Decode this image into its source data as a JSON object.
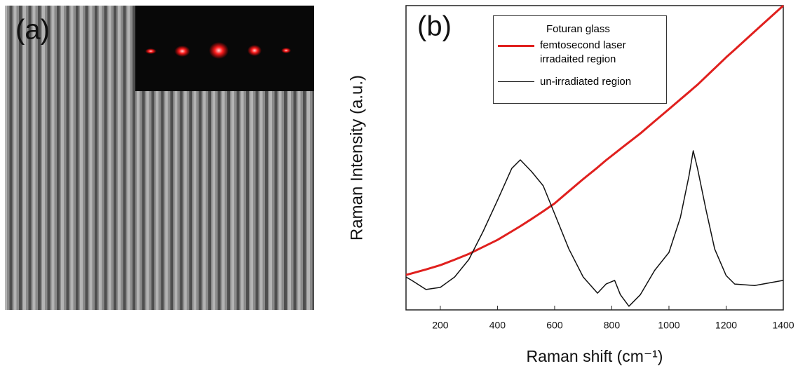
{
  "panel_a": {
    "label": "(a)"
  },
  "chart_data": {
    "type": "line",
    "panel_label": "(b)",
    "x_label": "Raman shift (cm⁻¹)",
    "y_label": "Raman Intensity (a.u.)",
    "legend_title": "Foturan glass",
    "x": [
      80,
      100,
      150,
      200,
      250,
      300,
      350,
      400,
      450,
      480,
      520,
      560,
      600,
      650,
      700,
      750,
      780,
      810,
      830,
      860,
      900,
      950,
      1000,
      1040,
      1070,
      1085,
      1100,
      1130,
      1160,
      1200,
      1230,
      1300,
      1400
    ],
    "series": [
      {
        "name": "femtosecond laser irradaited region",
        "color": "#e0201e",
        "width": 3,
        "values": [
          11.5,
          12,
          13.3,
          14.7,
          16.5,
          18.4,
          20.7,
          23,
          25.8,
          27.5,
          29.9,
          32.4,
          35,
          39,
          43,
          46.8,
          49.2,
          51.4,
          52.9,
          55.1,
          58,
          62,
          66,
          69.2,
          71.6,
          72.8,
          74,
          76.7,
          79.4,
          83,
          85.5,
          91.5,
          100
        ]
      },
      {
        "name": "un-irradiated region",
        "color": "#111111",
        "width": 1.5,
        "values": [
          10.8,
          9.7,
          6.7,
          7.4,
          10.8,
          16.6,
          25.8,
          36,
          46.5,
          49.3,
          45.4,
          40.8,
          31.6,
          20,
          10.8,
          5.5,
          8.5,
          9.7,
          5,
          1.2,
          5,
          13,
          18.9,
          30.4,
          44,
          52.3,
          46.5,
          32.7,
          20,
          11.3,
          8.5,
          8,
          9.7
        ]
      }
    ],
    "xlim": [
      80,
      1400
    ],
    "xticks": [
      200,
      400,
      600,
      800,
      1000,
      1200,
      1400
    ],
    "ylim": [
      0,
      100
    ]
  }
}
